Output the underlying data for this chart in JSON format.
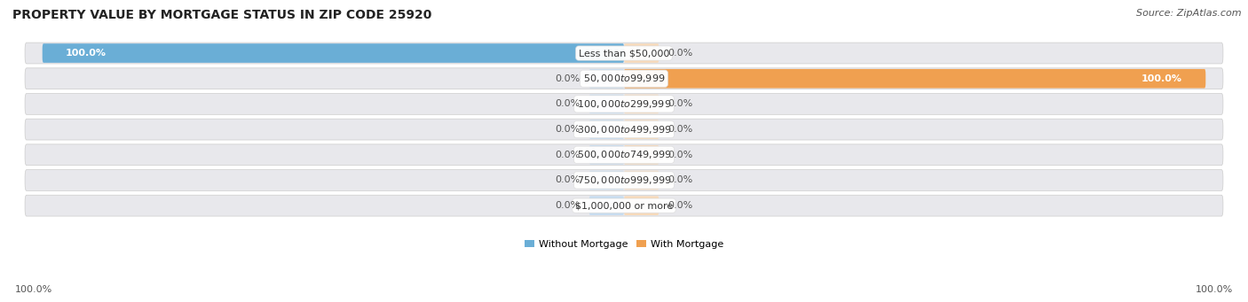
{
  "title": "PROPERTY VALUE BY MORTGAGE STATUS IN ZIP CODE 25920",
  "source": "Source: ZipAtlas.com",
  "categories": [
    "Less than $50,000",
    "$50,000 to $99,999",
    "$100,000 to $299,999",
    "$300,000 to $499,999",
    "$500,000 to $749,999",
    "$750,000 to $999,999",
    "$1,000,000 or more"
  ],
  "without_mortgage": [
    100.0,
    0.0,
    0.0,
    0.0,
    0.0,
    0.0,
    0.0
  ],
  "with_mortgage": [
    0.0,
    100.0,
    0.0,
    0.0,
    0.0,
    0.0,
    0.0
  ],
  "color_without": "#6aaed6",
  "color_with": "#f0a050",
  "color_without_light": "#c6dcf0",
  "color_with_light": "#f8d9b8",
  "row_bg": "#e8e8ec",
  "title_fontsize": 10,
  "source_fontsize": 8,
  "label_fontsize": 8,
  "value_fontsize": 8,
  "axis_label_fontsize": 8,
  "legend_fontsize": 8
}
